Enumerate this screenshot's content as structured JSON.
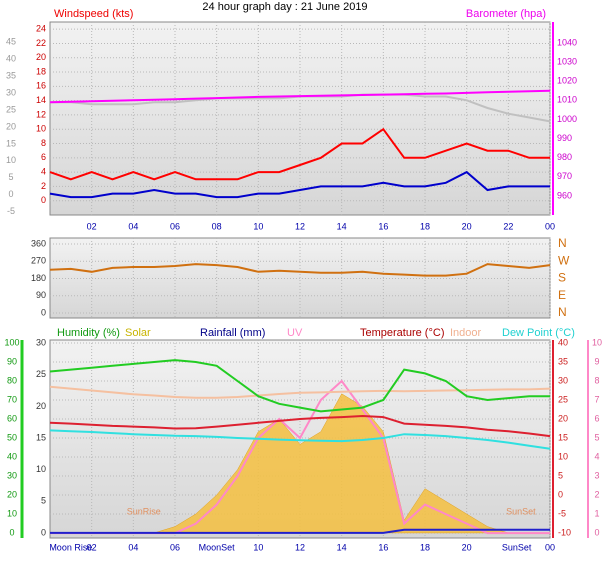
{
  "chart_data": [
    {
      "type": "line",
      "title": "24 hour graph day : 21 June 2019",
      "ylabel": "Windspeed (kts)",
      "y2label": "Barometer (hpa)",
      "x": [
        0,
        1,
        2,
        3,
        4,
        5,
        6,
        7,
        8,
        9,
        10,
        11,
        12,
        13,
        14,
        15,
        16,
        17,
        18,
        19,
        20,
        21,
        22,
        23,
        24
      ],
      "xlim": [
        0,
        24
      ],
      "xticks": [
        {
          "value": 2,
          "label": "02"
        },
        {
          "value": 4,
          "label": "04"
        },
        {
          "value": 6,
          "label": "06"
        },
        {
          "value": 8,
          "label": "08"
        },
        10,
        12,
        14,
        16,
        18,
        20,
        22,
        {
          "value": 24,
          "label": "00"
        }
      ],
      "ylim": [
        -2,
        25
      ],
      "yticks": [
        0,
        2,
        4,
        6,
        8,
        10,
        12,
        14,
        16,
        18,
        20,
        22,
        24
      ],
      "y2lim": [
        950,
        1051
      ],
      "y2ticks": [
        960,
        970,
        980,
        990,
        1000,
        1010,
        1020,
        1030,
        1040
      ],
      "y3lim": [
        -6,
        51
      ],
      "y3ticks": [
        -5,
        0,
        5,
        10,
        15,
        20,
        25,
        30,
        35,
        40,
        45
      ],
      "grid": true,
      "series": [
        {
          "color": "#c0c0c0",
          "axis": "y2",
          "values": [
            1009,
            1009,
            1008,
            1008,
            1008,
            1009,
            1009,
            1010,
            1011,
            1011,
            1011,
            1011,
            1012,
            1012,
            1012,
            1013,
            1013,
            1013,
            1012,
            1012,
            1010,
            1006,
            1003,
            1001,
            999
          ]
        },
        {
          "color": "#ff00ff",
          "axis": "y2",
          "values": [
            1009,
            1009.3,
            1009.5,
            1009.8,
            1010,
            1010.3,
            1010.6,
            1010.9,
            1011.2,
            1011.5,
            1011.8,
            1012,
            1012.2,
            1012.4,
            1012.6,
            1012.8,
            1013,
            1013.2,
            1013.4,
            1013.6,
            1013.9,
            1014.2,
            1014.5,
            1014.8,
            1015
          ]
        },
        {
          "color": "#ff0000",
          "axis": "y",
          "values": [
            4,
            3,
            4,
            3,
            4,
            3,
            4,
            3,
            3,
            3,
            4,
            4,
            5,
            6,
            8,
            8,
            10,
            6,
            6,
            7,
            8,
            7,
            7,
            6,
            6
          ]
        },
        {
          "color": "#0000cc",
          "axis": "y",
          "values": [
            1,
            0.5,
            0.5,
            1,
            1,
            1.5,
            1,
            1,
            0.5,
            0.5,
            1,
            1,
            1.5,
            2,
            2,
            2,
            2.5,
            2,
            2,
            2.5,
            4,
            1.5,
            2,
            2,
            2
          ]
        }
      ]
    },
    {
      "type": "line",
      "x": [
        0,
        1,
        2,
        3,
        4,
        5,
        6,
        7,
        8,
        9,
        10,
        11,
        12,
        13,
        14,
        15,
        16,
        17,
        18,
        19,
        20,
        21,
        22,
        23,
        24
      ],
      "xlim": [
        0,
        24
      ],
      "xticks": [
        2,
        4,
        6,
        8,
        10,
        12,
        14,
        16,
        18,
        20,
        22,
        24
      ],
      "ylim": [
        -26,
        391
      ],
      "yticks": [
        0,
        90,
        180,
        270,
        360
      ],
      "y2lim": [
        -26,
        391
      ],
      "y2ticks": [
        {
          "value": 0,
          "label": "N"
        },
        {
          "value": 90,
          "label": "E"
        },
        {
          "value": 180,
          "label": "S"
        },
        {
          "value": 270,
          "label": "W"
        },
        {
          "value": 360,
          "label": "N"
        }
      ],
      "grid": true,
      "series": [
        {
          "color": "#d07010",
          "axis": "y",
          "values": [
            225,
            230,
            215,
            235,
            240,
            240,
            245,
            255,
            250,
            240,
            215,
            220,
            215,
            210,
            210,
            215,
            205,
            200,
            195,
            195,
            205,
            255,
            245,
            235,
            250
          ]
        }
      ]
    },
    {
      "type": "line",
      "labels": [
        "Humidity (%)",
        "Solar",
        "Rainfall (mm)",
        "UV",
        "Temperature (°C)",
        "Indoor",
        "Dew Point (°C)"
      ],
      "x": [
        0,
        1,
        2,
        3,
        4,
        5,
        6,
        7,
        8,
        9,
        10,
        11,
        12,
        13,
        14,
        15,
        16,
        17,
        18,
        19,
        20,
        21,
        22,
        23,
        24
      ],
      "xlim": [
        0,
        24
      ],
      "xticks": [
        {
          "value": 2,
          "label": "02"
        },
        {
          "value": 4,
          "label": "04"
        },
        {
          "value": 6,
          "label": "06"
        },
        10,
        12,
        14,
        16,
        18,
        20,
        {
          "value": 24,
          "label": "00"
        }
      ],
      "markers": [
        {
          "label": "Moon Rise",
          "x": 1
        },
        {
          "label": "MoonSet",
          "x": 8
        },
        {
          "label": "SunSet",
          "x": 22.4
        }
      ],
      "annotations": [
        {
          "text": "SunRise",
          "x": 4.5
        },
        {
          "text": "SunSet",
          "x": 22.6
        }
      ],
      "ylim": [
        -2.6,
        101.6
      ],
      "yticks": [
        0,
        10,
        20,
        30,
        40,
        50,
        60,
        70,
        80,
        90,
        100
      ],
      "y2lim": [
        -0.8,
        30.5
      ],
      "y2ticks": [
        0,
        5,
        10,
        15,
        20,
        25,
        30
      ],
      "y3lim": [
        -11.3,
        40.8
      ],
      "y3ticks": [
        -10,
        -5,
        0,
        5,
        10,
        15,
        20,
        25,
        30,
        35,
        40
      ],
      "y4lim": [
        -0.26,
        10.16
      ],
      "y4ticks": [
        0,
        1,
        2,
        3,
        4,
        5,
        6,
        7,
        8,
        9,
        10
      ],
      "grid": true,
      "series": [
        {
          "color": "#f5c040",
          "axis": "y2",
          "fill": true,
          "values": [
            0,
            0,
            0,
            0,
            0,
            0,
            1,
            3,
            6,
            10,
            16,
            18,
            14,
            16,
            22,
            20,
            16,
            2,
            7,
            5,
            3,
            1,
            0,
            0,
            0
          ]
        },
        {
          "color": "#ff88c8",
          "axis": "y4",
          "values": [
            0,
            0,
            0,
            0,
            0,
            0,
            0,
            0.5,
            1.5,
            3,
            5,
            6,
            5,
            7,
            8,
            6.5,
            5,
            0.5,
            1.5,
            1,
            0.5,
            0,
            0,
            0,
            0
          ]
        },
        {
          "color": "#f5c0a0",
          "axis": "y3",
          "values": [
            28.5,
            28,
            27.5,
            27,
            26.5,
            26.2,
            25.8,
            25.6,
            25.6,
            25.8,
            26.2,
            26.6,
            26.9,
            27,
            27.2,
            27.3,
            27.4,
            27.3,
            27.4,
            27.5,
            27.6,
            27.7,
            27.8,
            27.8,
            28
          ]
        },
        {
          "color": "#30e0e0",
          "axis": "y3",
          "values": [
            17,
            16.8,
            16.6,
            16.3,
            16,
            15.8,
            15.6,
            15.5,
            15.3,
            15,
            14.8,
            14.6,
            14.4,
            14.3,
            14.2,
            14.5,
            15,
            16,
            15.8,
            15.5,
            15,
            14.5,
            13.8,
            13,
            12.2
          ]
        },
        {
          "color": "#dd2030",
          "axis": "y3",
          "values": [
            19,
            18.8,
            18.5,
            18.2,
            18,
            17.8,
            17.5,
            17.6,
            18,
            18.5,
            19,
            19.5,
            20,
            20.3,
            20.5,
            20.8,
            20.5,
            18.8,
            18.5,
            18.2,
            17.8,
            17.2,
            16.8,
            16.2,
            15.5
          ]
        },
        {
          "color": "#22cc22",
          "axis": "y",
          "values": [
            85,
            86,
            87,
            88,
            89,
            90,
            91,
            90,
            88,
            80,
            72,
            68,
            66,
            64,
            65,
            66,
            70,
            86,
            84,
            80,
            72,
            70,
            71,
            72,
            72
          ]
        },
        {
          "color": "#2020cc",
          "axis": "y2",
          "values": [
            0,
            0,
            0,
            0,
            0,
            0,
            0,
            0,
            0,
            0,
            0,
            0,
            0,
            0,
            0,
            0,
            0,
            0.5,
            0.5,
            0.5,
            0.5,
            0.5,
            0.5,
            0.5,
            0.5
          ]
        }
      ]
    }
  ]
}
